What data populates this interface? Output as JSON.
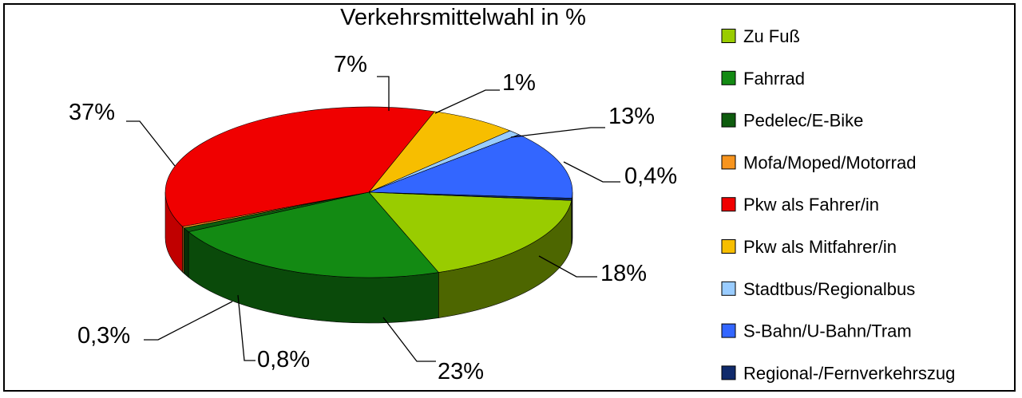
{
  "chart_data": {
    "type": "pie",
    "title": "Verkehrsmittelwahl in %",
    "legend_position": "right",
    "slices": [
      {
        "label": "Zu Fuß",
        "value": 18,
        "display": "18%",
        "color": "#99CC00",
        "side": "#4D6600"
      },
      {
        "label": "Fahrrad",
        "value": 23,
        "display": "23%",
        "color": "#138A13",
        "side": "#0A4A0A"
      },
      {
        "label": "Pedelec/E-Bike",
        "value": 0.8,
        "display": "0,8%",
        "color": "#0E5C0E",
        "side": "#073007"
      },
      {
        "label": "Mofa/Moped/Motorrad",
        "value": 0.3,
        "display": "0,3%",
        "color": "#F7941D",
        "side": "#8A5210"
      },
      {
        "label": "Pkw als Fahrer/in",
        "value": 37,
        "display": "37%",
        "color": "#F00000",
        "side": "#C00000"
      },
      {
        "label": "Pkw als Mitfahrer/in",
        "value": 7,
        "display": "7%",
        "color": "#F7BE00",
        "side": "#8A6A00"
      },
      {
        "label": "Stadtbus/Regionalbus",
        "value": 1,
        "display": "1%",
        "color": "#99CCFF",
        "side": "#557799"
      },
      {
        "label": "S-Bahn/U-Bahn/Tram",
        "value": 13,
        "display": "13%",
        "color": "#3366FF",
        "side": "#1A3380"
      },
      {
        "label": "Regional-/Fernverkehrszug",
        "value": 0.4,
        "display": "0,4%",
        "color": "#102A6B",
        "side": "#081535"
      }
    ]
  }
}
